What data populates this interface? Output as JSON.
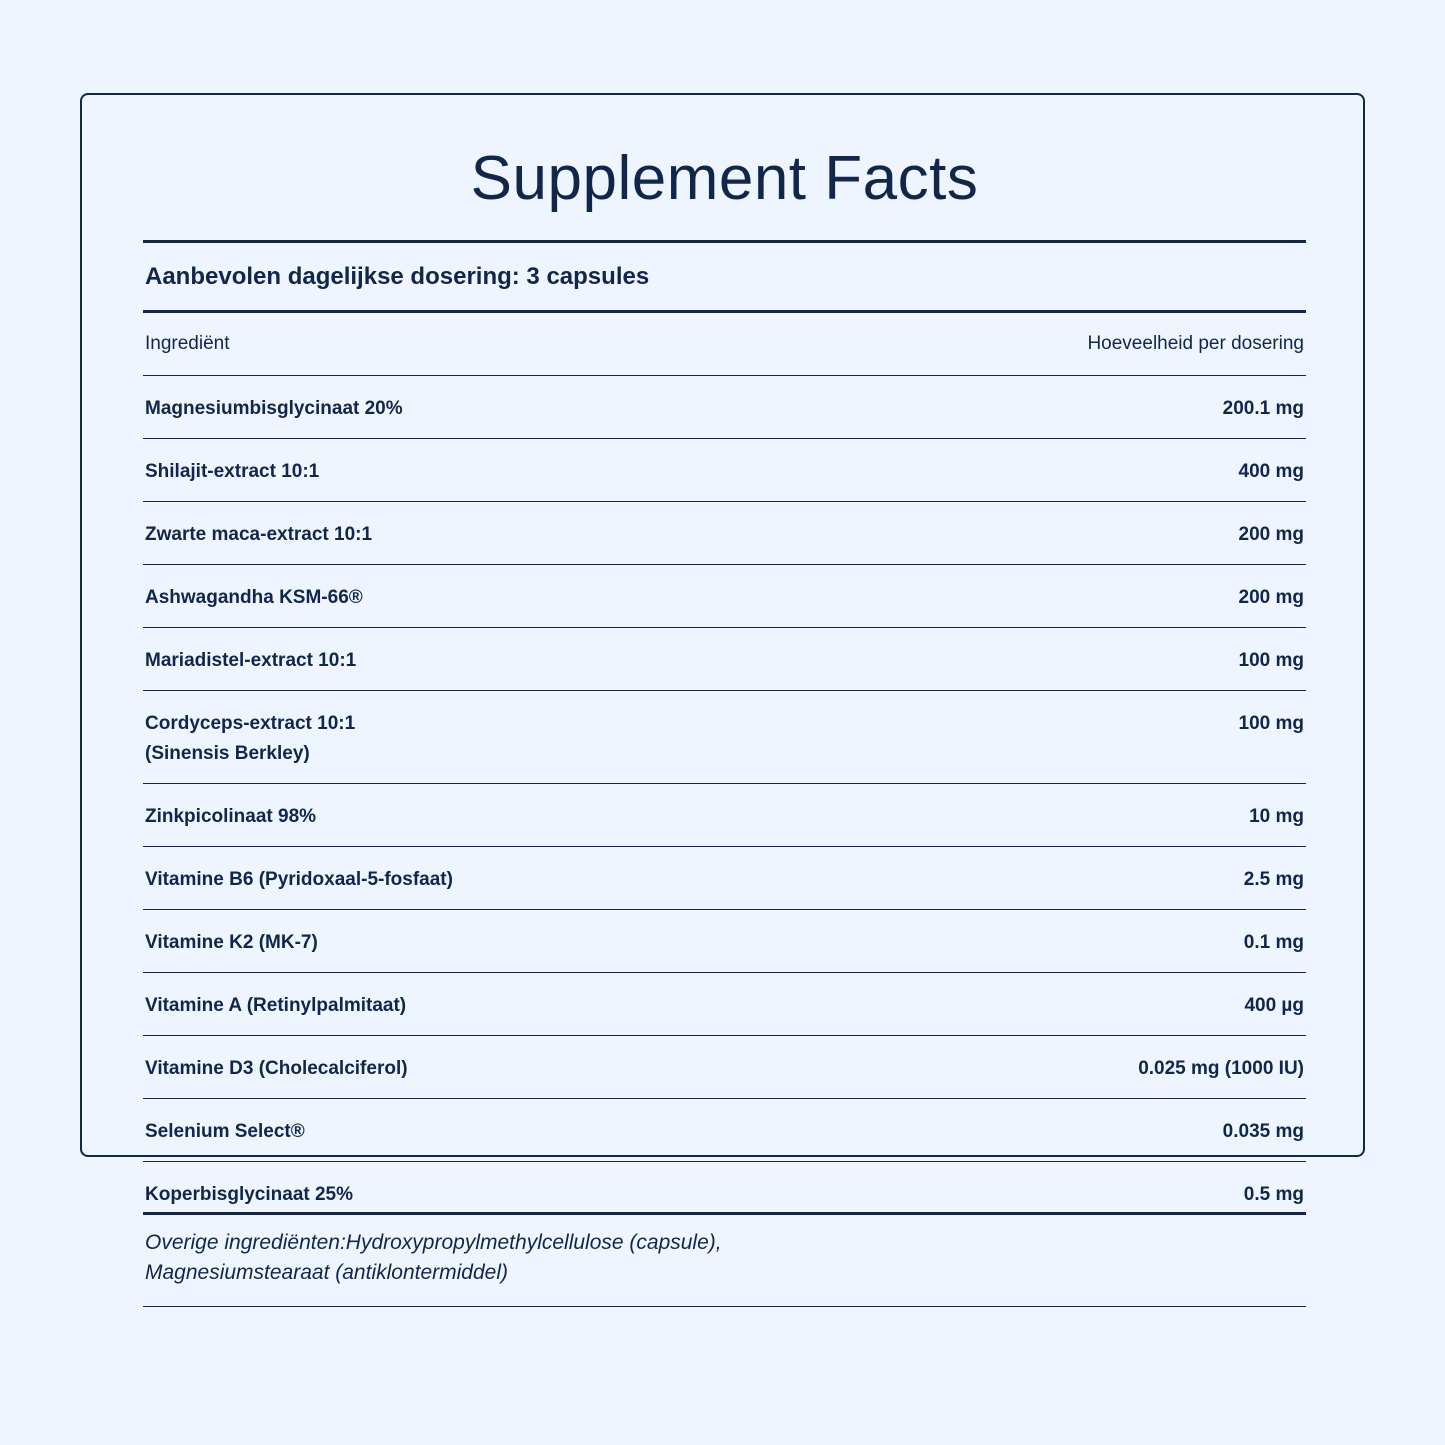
{
  "header": {
    "title": "Supplement Facts",
    "serving": "Aanbevolen dagelijkse dosering: 3 capsules"
  },
  "table": {
    "columns": [
      "Ingrediënt",
      "Hoeveelheid per dosering"
    ],
    "rows": [
      [
        "Magnesiumbisglycinaat 20%",
        "200.1 mg"
      ],
      [
        "Shilajit-extract 10:1",
        "400 mg"
      ],
      [
        "Zwarte maca-extract 10:1",
        "200 mg"
      ],
      [
        "Ashwagandha KSM-66®",
        "200 mg"
      ],
      [
        "Mariadistel-extract 10:1",
        "100 mg"
      ],
      [
        "Cordyceps-extract 10:1\n(Sinensis Berkley)",
        "100 mg"
      ],
      [
        "Zinkpicolinaat 98%",
        "10 mg"
      ],
      [
        "Vitamine B6 (Pyridoxaal-5-fosfaat)",
        "2.5 mg"
      ],
      [
        "Vitamine K2 (MK-7)",
        "0.1 mg"
      ],
      [
        "Vitamine A (Retinylpalmitaat)",
        "400 µg"
      ],
      [
        "Vitamine D3 (Cholecalciferol)",
        "0.025 mg (1000 IU)"
      ],
      [
        "Selenium Select®",
        "0.035 mg"
      ],
      [
        "Koperbisglycinaat 25%",
        "0.5 mg"
      ]
    ]
  },
  "footer": {
    "other_ingredients": "Overige ingrediënten:Hydroxypropylmethylcellulose (capsule),\nMagnesiumstearaat (antiklontermiddel)"
  }
}
